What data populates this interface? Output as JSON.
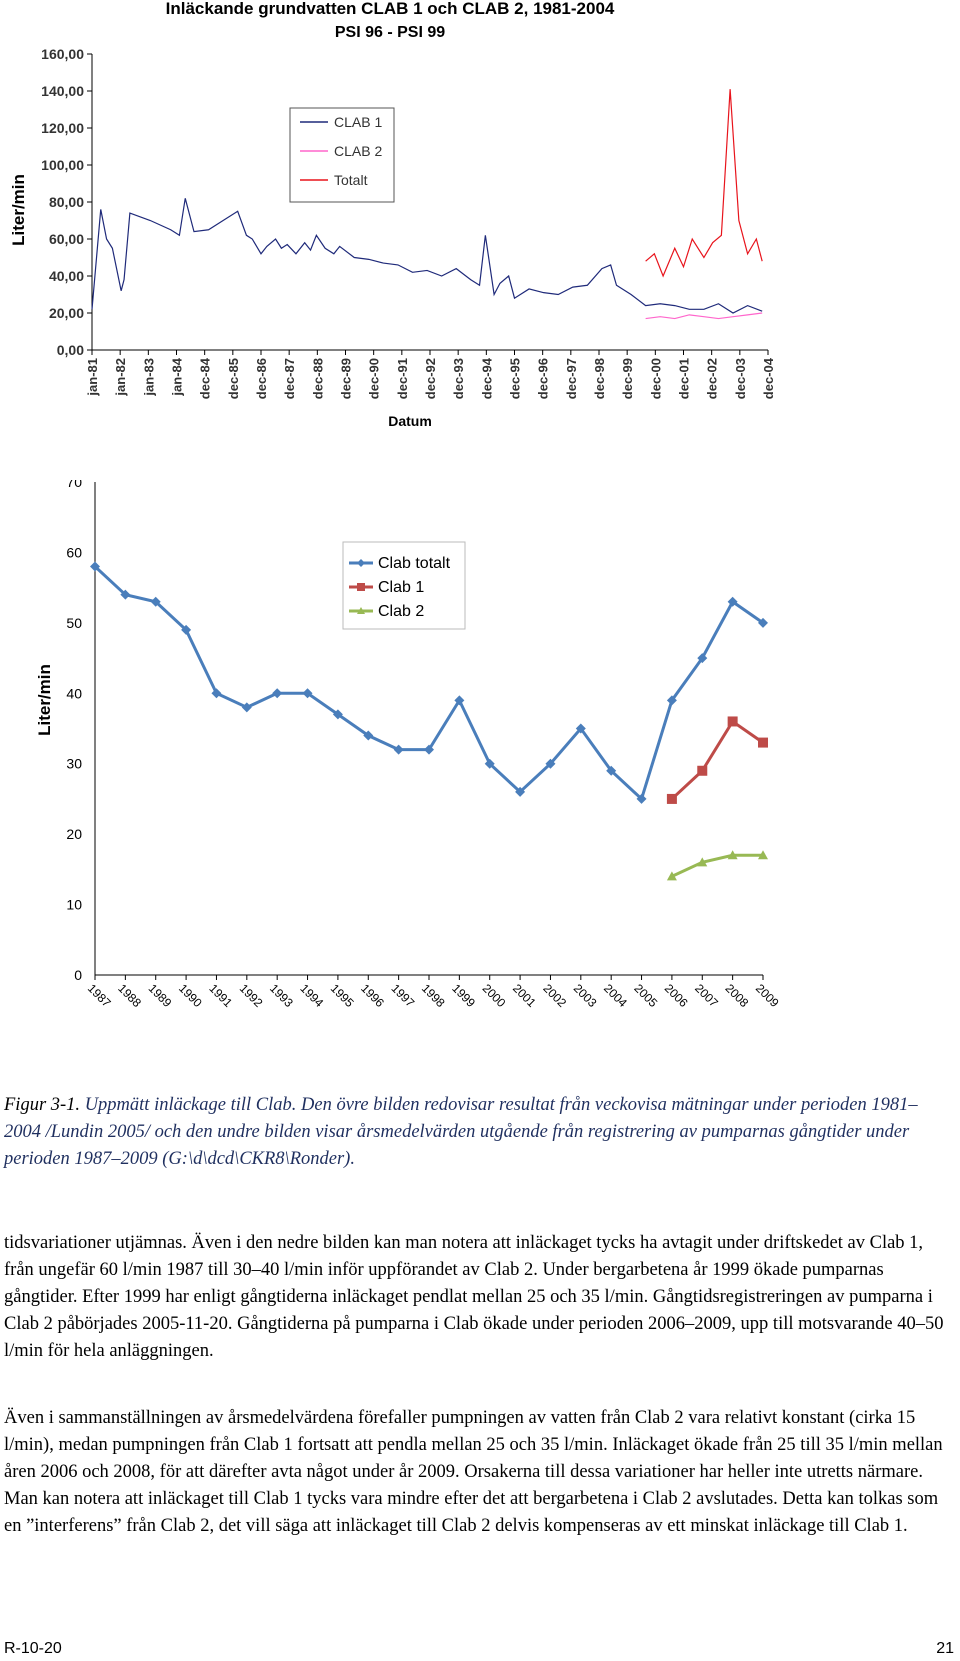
{
  "chart_data": [
    {
      "type": "line",
      "title": "Inläckande grundvatten CLAB 1 och CLAB 2, 1981-2004",
      "subtitle": "PSI 96 - PSI 99",
      "ylabel": "Liter/min",
      "xlabel": "Datum",
      "ylim": [
        0,
        160
      ],
      "yticks": [
        "0,00",
        "20,00",
        "40,00",
        "60,00",
        "80,00",
        "100,00",
        "120,00",
        "140,00",
        "160,00"
      ],
      "categories": [
        "jan-81",
        "jan-82",
        "jan-83",
        "jan-84",
        "dec-84",
        "dec-85",
        "dec-86",
        "dec-87",
        "dec-88",
        "dec-89",
        "dec-90",
        "dec-91",
        "dec-92",
        "dec-93",
        "dec-94",
        "dec-95",
        "dec-96",
        "dec-97",
        "dec-98",
        "dec-99",
        "dec-00",
        "dec-01",
        "dec-02",
        "dec-03",
        "dec-04"
      ],
      "legend": [
        "CLAB 1",
        "CLAB 2",
        "Totalt"
      ],
      "legend_position": "top-center",
      "grid": false,
      "series_colors": {
        "CLAB 1": "#1f2a7a",
        "CLAB 2": "#ff66cc",
        "Totalt": "#e8141c"
      },
      "series": [
        {
          "name": "CLAB 1",
          "x": [
            1981.0,
            1981.3,
            1981.5,
            1981.7,
            1982.0,
            1982.1,
            1982.3,
            1983.0,
            1983.7,
            1984.0,
            1984.2,
            1984.5,
            1985.0,
            1985.5,
            1986.0,
            1986.3,
            1986.5,
            1986.8,
            1987.0,
            1987.3,
            1987.5,
            1987.7,
            1988.0,
            1988.3,
            1988.5,
            1988.7,
            1989.0,
            1989.3,
            1989.5,
            1990.0,
            1990.5,
            1991.0,
            1991.5,
            1992.0,
            1992.5,
            1993.0,
            1993.5,
            1994.0,
            1994.3,
            1994.5,
            1994.8,
            1995.0,
            1995.3,
            1995.5,
            1996.0,
            1996.5,
            1997.0,
            1997.5,
            1998.0,
            1998.5,
            1998.8,
            1999.0,
            1999.5,
            2000.0,
            2000.5,
            2001.0,
            2001.5,
            2002.0,
            2002.5,
            2003.0,
            2003.5,
            2004.0
          ],
          "y": [
            22,
            76,
            60,
            55,
            32,
            38,
            74,
            70,
            65,
            62,
            82,
            64,
            65,
            70,
            75,
            62,
            60,
            52,
            56,
            60,
            55,
            57,
            52,
            58,
            54,
            62,
            55,
            52,
            56,
            50,
            49,
            47,
            46,
            42,
            43,
            40,
            44,
            38,
            35,
            62,
            30,
            36,
            40,
            28,
            33,
            31,
            30,
            34,
            35,
            44,
            46,
            35,
            30,
            24,
            25,
            24,
            22,
            22,
            25,
            20,
            24,
            21
          ]
        },
        {
          "name": "CLAB 2",
          "x": [
            2000.0,
            2000.5,
            2001.0,
            2001.5,
            2002.0,
            2002.5,
            2003.0,
            2003.5,
            2004.0
          ],
          "y": [
            17,
            18,
            17,
            19,
            18,
            17,
            18,
            19,
            20
          ]
        },
        {
          "name": "Totalt",
          "x": [
            2000.0,
            2000.3,
            2000.6,
            2001.0,
            2001.3,
            2001.6,
            2002.0,
            2002.3,
            2002.6,
            2002.9,
            2003.2,
            2003.5,
            2003.8,
            2004.0
          ],
          "y": [
            48,
            52,
            40,
            55,
            45,
            60,
            50,
            58,
            62,
            141,
            70,
            52,
            60,
            48
          ]
        }
      ]
    },
    {
      "type": "line",
      "ylabel": "Liter/min",
      "ylim": [
        0,
        70
      ],
      "yticks": [
        "0",
        "10",
        "20",
        "30",
        "40",
        "50",
        "60",
        "70"
      ],
      "categories": [
        "1987",
        "1988",
        "1989",
        "1990",
        "1991",
        "1992",
        "1993",
        "1994",
        "1995",
        "1996",
        "1997",
        "1998",
        "1999",
        "2000",
        "2001",
        "2002",
        "2003",
        "2004",
        "2005",
        "2006",
        "2007",
        "2008",
        "2009"
      ],
      "legend": [
        "Clab totalt",
        "Clab 1",
        "Clab 2"
      ],
      "legend_position": "top-center",
      "grid": false,
      "series_colors": {
        "Clab totalt": "#4a7ebb",
        "Clab 1": "#be4b48",
        "Clab 2": "#98b954"
      },
      "series": [
        {
          "name": "Clab totalt",
          "values": [
            58,
            54,
            53,
            49,
            40,
            38,
            40,
            40,
            37,
            34,
            32,
            32,
            39,
            30,
            26,
            30,
            35,
            29,
            25,
            39,
            45,
            53,
            50
          ]
        },
        {
          "name": "Clab 1",
          "values": [
            null,
            null,
            null,
            null,
            null,
            null,
            null,
            null,
            null,
            null,
            null,
            null,
            null,
            null,
            null,
            null,
            null,
            null,
            null,
            25,
            29,
            36,
            33
          ]
        },
        {
          "name": "Clab 2",
          "values": [
            null,
            null,
            null,
            null,
            null,
            null,
            null,
            null,
            null,
            null,
            null,
            null,
            null,
            null,
            null,
            null,
            null,
            null,
            null,
            14,
            16,
            17,
            17
          ]
        }
      ]
    }
  ],
  "caption": {
    "label": "Figur 3-1.",
    "text": "Uppmätt inläckage till Clab. Den övre bilden redovisar resultat från veckovisa mätningar under perioden 1981–2004 /Lundin 2005/ och den undre bilden visar årsmedelvärden utgående från registrering av pumparnas gångtider under perioden 1987–2009 (G:\\d\\dcd\\CKR8\\Ronder)."
  },
  "paragraphs": [
    "tidsvariationer utjämnas. Även i den nedre bilden kan man notera att inläckaget tycks ha avtagit under driftskedet av Clab 1, från ungefär 60 l/min 1987 till 30–40 l/min inför uppförandet av Clab 2. Under bergarbetena år 1999 ökade pumparnas gångtider. Efter 1999 har enligt gångtiderna inläckaget pendlat mellan 25 och 35 l/min. Gångtidsregistreringen av pumparna i Clab 2 påbörjades 2005-11-20. Gångtiderna på pumparna i Clab ökade under perioden 2006–2009, upp till motsvarande 40–50 l/min för hela anläggningen.",
    "Även i sammanställningen av årsmedelvärdena förefaller pumpningen av vatten från Clab 2 vara relativt konstant (cirka 15 l/min), medan pumpningen från Clab 1 fortsatt att pendla mellan 25 och 35 l/min. Inläckaget ökade från 25 till 35 l/min mellan åren 2006 och 2008, för att därefter avta något under år 2009. Orsakerna till dessa variationer har heller inte utretts närmare. Man kan notera att inläckaget till Clab 1 tycks vara mindre efter det att bergarbetena i Clab 2 avslutades. Detta kan tolkas som en ”interferens” från Clab 2, det vill säga att inläckaget till Clab 2 delvis kompenseras av ett minskat inläckage till Clab 1."
  ],
  "footer": {
    "left": "R-10-20",
    "right": "21"
  }
}
